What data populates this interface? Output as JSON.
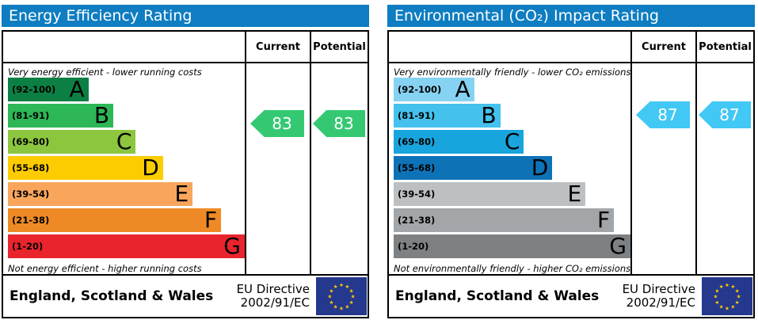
{
  "chart_data": [
    {
      "type": "bar",
      "title": "Energy Efficiency Rating",
      "categories": [
        "A (92-100)",
        "B (81-91)",
        "C (69-80)",
        "D (55-68)",
        "E (39-54)",
        "F (21-38)",
        "G (1-20)"
      ],
      "series": [
        {
          "name": "band-length-percent-of-scale",
          "values": [
            34,
            44.5,
            54,
            65.5,
            78,
            90,
            100
          ]
        }
      ],
      "markers": {
        "current": 83,
        "potential": 83
      },
      "legend": [
        "Current",
        "Potential"
      ],
      "ylabel": "",
      "xlabel": "",
      "annotations": [
        "Very energy efficient - lower running costs",
        "Not energy efficient - higher running costs"
      ]
    },
    {
      "type": "bar",
      "title": "Environmental (CO₂) Impact Rating",
      "categories": [
        "A (92-100)",
        "B (81-91)",
        "C (69-80)",
        "D (55-68)",
        "E (39-54)",
        "F (21-38)",
        "G (1-20)"
      ],
      "series": [
        {
          "name": "band-length-percent-of-scale",
          "values": [
            34,
            45,
            55,
            67,
            81,
            93,
            100
          ]
        }
      ],
      "markers": {
        "current": 87,
        "potential": 87
      },
      "legend": [
        "Current",
        "Potential"
      ],
      "ylabel": "",
      "xlabel": "",
      "annotations": [
        "Very environmentally friendly - lower CO₂ emissions",
        "Not environmentally friendly - higher CO₂ emissions"
      ]
    }
  ],
  "panels": [
    {
      "title": "Energy Efficiency Rating",
      "header_color": "#0e7dc1",
      "col_current": "Current",
      "col_potential": "Potential",
      "top_note": "Very energy efficient - lower running costs",
      "bottom_note": "Not energy efficient - higher running costs",
      "current_value": 83,
      "potential_value": 83,
      "arrow_color": "#35c873",
      "bands": [
        {
          "range_label": "(92-100)",
          "letter": "A",
          "min": 92,
          "max": 100,
          "color": "#0c8044",
          "width_pct": 34
        },
        {
          "range_label": "(81-91)",
          "letter": "B",
          "min": 81,
          "max": 91,
          "color": "#2db757",
          "width_pct": 44.5
        },
        {
          "range_label": "(69-80)",
          "letter": "C",
          "min": 69,
          "max": 80,
          "color": "#8cc63f",
          "width_pct": 54
        },
        {
          "range_label": "(55-68)",
          "letter": "D",
          "min": 55,
          "max": 68,
          "color": "#fccc00",
          "width_pct": 65.5
        },
        {
          "range_label": "(39-54)",
          "letter": "E",
          "min": 39,
          "max": 54,
          "color": "#f9a65c",
          "width_pct": 78
        },
        {
          "range_label": "(21-38)",
          "letter": "F",
          "min": 21,
          "max": 38,
          "color": "#ee8a25",
          "width_pct": 90
        },
        {
          "range_label": "(1-20)",
          "letter": "G",
          "min": 1,
          "max": 20,
          "color": "#e9242c",
          "width_pct": 100
        }
      ],
      "footer": {
        "region": "England, Scotland & Wales",
        "directive_line1": "EU Directive",
        "directive_line2": "2002/91/EC",
        "flag_icon": "eu-flag",
        "flag_blue": "#24388d",
        "star_color": "#ffcc00"
      }
    },
    {
      "title": "Environmental (CO₂) Impact Rating",
      "header_color": "#0e7dc1",
      "col_current": "Current",
      "col_potential": "Potential",
      "top_note": "Very environmentally friendly - lower CO₂ emissions",
      "bottom_note": "Not environmentally friendly - higher CO₂ emissions",
      "current_value": 87,
      "potential_value": 87,
      "arrow_color": "#41c8f4",
      "bands": [
        {
          "range_label": "(92-100)",
          "letter": "A",
          "min": 92,
          "max": 100,
          "color": "#86d2f2",
          "width_pct": 34
        },
        {
          "range_label": "(81-91)",
          "letter": "B",
          "min": 81,
          "max": 91,
          "color": "#44c1ec",
          "width_pct": 45
        },
        {
          "range_label": "(69-80)",
          "letter": "C",
          "min": 69,
          "max": 80,
          "color": "#18a5dd",
          "width_pct": 55
        },
        {
          "range_label": "(55-68)",
          "letter": "D",
          "min": 55,
          "max": 68,
          "color": "#0e72b7",
          "width_pct": 67
        },
        {
          "range_label": "(39-54)",
          "letter": "E",
          "min": 39,
          "max": 54,
          "color": "#bdc0c2",
          "width_pct": 81
        },
        {
          "range_label": "(21-38)",
          "letter": "F",
          "min": 21,
          "max": 38,
          "color": "#a3a6a9",
          "width_pct": 93
        },
        {
          "range_label": "(1-20)",
          "letter": "G",
          "min": 1,
          "max": 20,
          "color": "#7e8184",
          "width_pct": 100
        }
      ],
      "footer": {
        "region": "England, Scotland & Wales",
        "directive_line1": "EU Directive",
        "directive_line2": "2002/91/EC",
        "flag_icon": "eu-flag",
        "flag_blue": "#24388d",
        "star_color": "#ffcc00"
      }
    }
  ]
}
